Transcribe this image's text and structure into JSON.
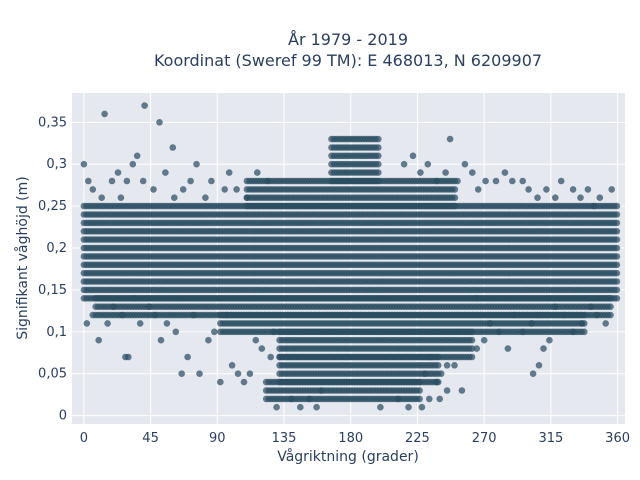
{
  "chart_data": {
    "type": "scatter",
    "title_lines": [
      "År 1979 - 2019",
      "Koordinat (Sweref 99 TM): E 468013, N 6209907"
    ],
    "xlabel": "Vågriktning (grader)",
    "ylabel": "Signifikant våghöjd (m)",
    "xlim": [
      -8,
      365
    ],
    "ylim": [
      -0.01,
      0.385
    ],
    "x_ticks": [
      0,
      45,
      90,
      135,
      180,
      225,
      270,
      315,
      360
    ],
    "x_tick_labels": [
      "0",
      "45",
      "90",
      "135",
      "180",
      "225",
      "270",
      "315",
      "360"
    ],
    "y_ticks": [
      0,
      0.05,
      0.1,
      0.15,
      0.2,
      0.25,
      0.3,
      0.35
    ],
    "y_tick_labels": [
      "0",
      "0,05",
      "0,1",
      "0,15",
      "0,2",
      "0,25",
      "0,3",
      "0,35"
    ],
    "grid": true,
    "legend": "none",
    "colors": {
      "marker": "#2b4d62",
      "plot_background": "#e5e8ef",
      "grid": "#ffffff",
      "text": "#2a3f5f"
    },
    "bands": [
      {
        "y_min": 0.14,
        "y_max": 0.25,
        "x_min": 0,
        "x_max": 360,
        "step": 0.01
      },
      {
        "y_min": 0.12,
        "y_max": 0.14,
        "x_min": 8,
        "x_max": 356,
        "step": 0.01
      },
      {
        "y_min": 0.1,
        "y_max": 0.12,
        "x_min": 92,
        "x_max": 338,
        "step": 0.01
      },
      {
        "y_min": 0.07,
        "y_max": 0.1,
        "x_min": 132,
        "x_max": 262,
        "step": 0.01
      },
      {
        "y_min": 0.04,
        "y_max": 0.07,
        "x_min": 132,
        "x_max": 240,
        "step": 0.01
      },
      {
        "y_min": 0.02,
        "y_max": 0.04,
        "x_min": 123,
        "x_max": 228,
        "step": 0.01
      },
      {
        "y_min": 0.25,
        "y_max": 0.28,
        "x_min": 110,
        "x_max": 252,
        "step": 0.01
      },
      {
        "y_min": 0.28,
        "y_max": 0.33,
        "x_min": 167,
        "x_max": 200,
        "step": 0.01
      }
    ],
    "points": [
      [
        14,
        0.36
      ],
      [
        41,
        0.37
      ],
      [
        51,
        0.35
      ],
      [
        36,
        0.31
      ],
      [
        60,
        0.32
      ],
      [
        33,
        0.3
      ],
      [
        76,
        0.3
      ],
      [
        23,
        0.29
      ],
      [
        3,
        0.28
      ],
      [
        19,
        0.28
      ],
      [
        29,
        0.28
      ],
      [
        47,
        0.27
      ],
      [
        55,
        0.29
      ],
      [
        67,
        0.27
      ],
      [
        72,
        0.28
      ],
      [
        86,
        0.28
      ],
      [
        98,
        0.29
      ],
      [
        103,
        0.27
      ],
      [
        117,
        0.29
      ],
      [
        124,
        0.28
      ],
      [
        6,
        0.27
      ],
      [
        12,
        0.26
      ],
      [
        25,
        0.26
      ],
      [
        40,
        0.28
      ],
      [
        61,
        0.26
      ],
      [
        82,
        0.26
      ],
      [
        95,
        0.27
      ],
      [
        110,
        0.26
      ],
      [
        0,
        0.3
      ],
      [
        247,
        0.33
      ],
      [
        257,
        0.3
      ],
      [
        216,
        0.3
      ],
      [
        222,
        0.31
      ],
      [
        232,
        0.3
      ],
      [
        244,
        0.29
      ],
      [
        262,
        0.29
      ],
      [
        271,
        0.28
      ],
      [
        278,
        0.28
      ],
      [
        289,
        0.28
      ],
      [
        300,
        0.27
      ],
      [
        312,
        0.27
      ],
      [
        322,
        0.28
      ],
      [
        330,
        0.27
      ],
      [
        340,
        0.27
      ],
      [
        348,
        0.26
      ],
      [
        356,
        0.27
      ],
      [
        284,
        0.29
      ],
      [
        266,
        0.27
      ],
      [
        296,
        0.28
      ],
      [
        306,
        0.26
      ],
      [
        318,
        0.26
      ],
      [
        335,
        0.26
      ],
      [
        344,
        0.25
      ],
      [
        252,
        0.28
      ],
      [
        238,
        0.28
      ],
      [
        227,
        0.29
      ],
      [
        2,
        0.11
      ],
      [
        6,
        0.12
      ],
      [
        10,
        0.09
      ],
      [
        16,
        0.11
      ],
      [
        20,
        0.13
      ],
      [
        26,
        0.12
      ],
      [
        30,
        0.07
      ],
      [
        34,
        0.14
      ],
      [
        38,
        0.11
      ],
      [
        44,
        0.13
      ],
      [
        48,
        0.12
      ],
      [
        52,
        0.09
      ],
      [
        56,
        0.11
      ],
      [
        62,
        0.1
      ],
      [
        66,
        0.05
      ],
      [
        70,
        0.07
      ],
      [
        74,
        0.12
      ],
      [
        78,
        0.05
      ],
      [
        84,
        0.09
      ],
      [
        88,
        0.1
      ],
      [
        92,
        0.04
      ],
      [
        96,
        0.12
      ],
      [
        100,
        0.06
      ],
      [
        104,
        0.05
      ],
      [
        108,
        0.04
      ],
      [
        112,
        0.05
      ],
      [
        116,
        0.09
      ],
      [
        120,
        0.08
      ],
      [
        126,
        0.07
      ],
      [
        128,
        0.1
      ],
      [
        265,
        0.08
      ],
      [
        270,
        0.09
      ],
      [
        274,
        0.11
      ],
      [
        280,
        0.1
      ],
      [
        286,
        0.08
      ],
      [
        290,
        0.12
      ],
      [
        296,
        0.1
      ],
      [
        302,
        0.11
      ],
      [
        306,
        0.12
      ],
      [
        310,
        0.08
      ],
      [
        314,
        0.09
      ],
      [
        318,
        0.13
      ],
      [
        324,
        0.12
      ],
      [
        330,
        0.1
      ],
      [
        336,
        0.11
      ],
      [
        342,
        0.13
      ],
      [
        346,
        0.12
      ],
      [
        352,
        0.11
      ],
      [
        303,
        0.05
      ],
      [
        307,
        0.06
      ],
      [
        241,
        0.05
      ],
      [
        245,
        0.06
      ],
      [
        250,
        0.06
      ],
      [
        255,
        0.03
      ],
      [
        233,
        0.02
      ],
      [
        228,
        0.01
      ],
      [
        219,
        0.01
      ],
      [
        146,
        0.01
      ],
      [
        152,
        0.02
      ],
      [
        157,
        0.01
      ],
      [
        160,
        0.03
      ],
      [
        140,
        0.02
      ],
      [
        265,
        0.14
      ],
      [
        240,
        0.02
      ],
      [
        245,
        0.03
      ],
      [
        238,
        0.04
      ],
      [
        230,
        0.05
      ],
      [
        234,
        0.07
      ],
      [
        28,
        0.07
      ],
      [
        130,
        0.01
      ],
      [
        212,
        0.02
      ],
      [
        200,
        0.01
      ]
    ]
  }
}
